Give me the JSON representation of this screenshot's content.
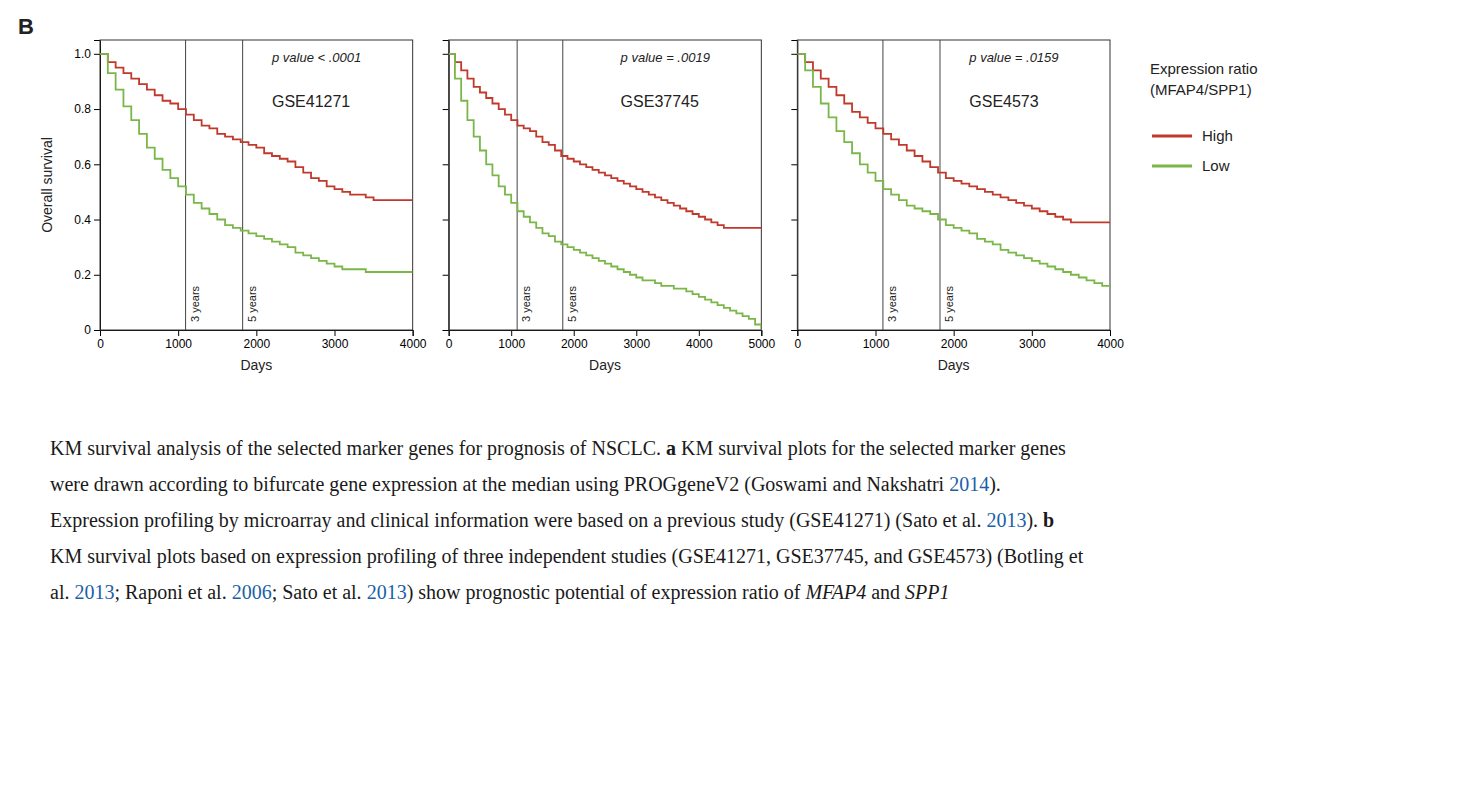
{
  "panel_label": "B",
  "legend": "right",
  "legend_title": "Expression ratio\n(MFAP4/SPP1)",
  "chart_data": [
    {
      "type": "step",
      "title": "GSE41271",
      "annotations": [
        {
          "text": "p value < .0001"
        }
      ],
      "xlabel": "Days",
      "ylabel": "Overall survival",
      "xlim": [
        0,
        4000
      ],
      "xticks": [
        0,
        1000,
        2000,
        3000,
        4000
      ],
      "ylim": [
        0,
        1.05
      ],
      "yticks": [
        0,
        0.2,
        0.4,
        0.6,
        0.8,
        {
          "value": 1.0,
          "label": "1.0"
        }
      ],
      "grid": false,
      "vlines": [
        {
          "value": 1095,
          "label": "3 years"
        },
        {
          "value": 1825,
          "label": "5 years"
        }
      ],
      "x": [
        0,
        100,
        200,
        300,
        400,
        500,
        600,
        700,
        800,
        900,
        1000,
        1100,
        1200,
        1300,
        1400,
        1500,
        1600,
        1700,
        1800,
        1900,
        2000,
        2100,
        2200,
        2300,
        2400,
        2500,
        2600,
        2700,
        2800,
        2900,
        3000,
        3100,
        3200,
        3300,
        3400,
        3500,
        3600,
        3700,
        3800,
        3900,
        4000
      ],
      "series": [
        {
          "name": "High",
          "color": "#c0392b",
          "values": [
            1.0,
            0.97,
            0.95,
            0.93,
            0.91,
            0.89,
            0.87,
            0.85,
            0.83,
            0.82,
            0.8,
            0.78,
            0.76,
            0.74,
            0.73,
            0.71,
            0.7,
            0.69,
            0.68,
            0.67,
            0.66,
            0.64,
            0.63,
            0.62,
            0.61,
            0.59,
            0.57,
            0.55,
            0.54,
            0.52,
            0.51,
            0.5,
            0.49,
            0.49,
            0.48,
            0.47,
            0.47,
            0.47,
            0.47,
            0.47,
            0.47
          ]
        },
        {
          "name": "Low",
          "color": "#7ab648",
          "values": [
            1.0,
            0.93,
            0.87,
            0.81,
            0.76,
            0.71,
            0.66,
            0.62,
            0.58,
            0.55,
            0.52,
            0.49,
            0.46,
            0.44,
            0.42,
            0.4,
            0.38,
            0.37,
            0.36,
            0.35,
            0.34,
            0.33,
            0.32,
            0.31,
            0.3,
            0.28,
            0.27,
            0.26,
            0.25,
            0.24,
            0.23,
            0.22,
            0.22,
            0.22,
            0.21,
            0.21,
            0.21,
            0.21,
            0.21,
            0.21,
            0.21
          ]
        }
      ]
    },
    {
      "type": "step",
      "title": "GSE37745",
      "annotations": [
        {
          "text": "p value = .0019"
        }
      ],
      "xlabel": "Days",
      "xlim": [
        0,
        5000
      ],
      "xticks": [
        0,
        1000,
        2000,
        3000,
        4000,
        5000
      ],
      "ylim": [
        0,
        1.05
      ],
      "yticks": [
        0,
        0.2,
        0.4,
        0.6,
        0.8,
        1.0
      ],
      "tick_labels": "x",
      "grid": false,
      "vlines": [
        {
          "value": 1095,
          "label": "3 years"
        },
        {
          "value": 1825,
          "label": "5 years"
        }
      ],
      "x": [
        0,
        100,
        200,
        300,
        400,
        500,
        600,
        700,
        800,
        900,
        1000,
        1100,
        1200,
        1300,
        1400,
        1500,
        1600,
        1700,
        1800,
        1900,
        2000,
        2100,
        2200,
        2300,
        2400,
        2500,
        2600,
        2700,
        2800,
        2900,
        3000,
        3100,
        3200,
        3300,
        3400,
        3500,
        3600,
        3700,
        3800,
        3900,
        4000,
        4100,
        4200,
        4300,
        4400,
        4500,
        4600,
        4700,
        4800,
        4900,
        5000
      ],
      "series": [
        {
          "name": "High",
          "color": "#c0392b",
          "values": [
            1.0,
            0.97,
            0.94,
            0.91,
            0.88,
            0.86,
            0.84,
            0.82,
            0.8,
            0.78,
            0.76,
            0.74,
            0.73,
            0.72,
            0.7,
            0.68,
            0.67,
            0.65,
            0.63,
            0.62,
            0.61,
            0.6,
            0.59,
            0.58,
            0.57,
            0.56,
            0.55,
            0.54,
            0.53,
            0.52,
            0.51,
            0.5,
            0.49,
            0.48,
            0.47,
            0.46,
            0.45,
            0.44,
            0.43,
            0.42,
            0.41,
            0.4,
            0.39,
            0.38,
            0.37,
            0.37,
            0.37,
            0.37,
            0.37,
            0.37,
            0.37
          ]
        },
        {
          "name": "Low",
          "color": "#7ab648",
          "values": [
            1.0,
            0.91,
            0.83,
            0.76,
            0.7,
            0.65,
            0.6,
            0.56,
            0.52,
            0.49,
            0.46,
            0.43,
            0.41,
            0.39,
            0.37,
            0.35,
            0.34,
            0.32,
            0.31,
            0.3,
            0.29,
            0.28,
            0.27,
            0.26,
            0.25,
            0.24,
            0.23,
            0.22,
            0.21,
            0.2,
            0.19,
            0.18,
            0.18,
            0.17,
            0.16,
            0.16,
            0.15,
            0.15,
            0.14,
            0.13,
            0.12,
            0.11,
            0.1,
            0.09,
            0.08,
            0.07,
            0.06,
            0.05,
            0.04,
            0.02,
            0.0
          ]
        }
      ]
    },
    {
      "type": "step",
      "title": "GSE4573",
      "annotations": [
        {
          "text": "p value = .0159"
        }
      ],
      "xlabel": "Days",
      "xlim": [
        0,
        4000
      ],
      "xticks": [
        0,
        1000,
        2000,
        3000,
        4000
      ],
      "ylim": [
        0,
        1.05
      ],
      "yticks": [
        0,
        0.2,
        0.4,
        0.6,
        0.8,
        1.0
      ],
      "tick_labels": "x",
      "grid": false,
      "vlines": [
        {
          "value": 1095,
          "label": "3 years"
        },
        {
          "value": 1825,
          "label": "5 years"
        }
      ],
      "x": [
        0,
        100,
        200,
        300,
        400,
        500,
        600,
        700,
        800,
        900,
        1000,
        1100,
        1200,
        1300,
        1400,
        1500,
        1600,
        1700,
        1800,
        1900,
        2000,
        2100,
        2200,
        2300,
        2400,
        2500,
        2600,
        2700,
        2800,
        2900,
        3000,
        3100,
        3200,
        3300,
        3400,
        3500,
        3600,
        3700,
        3800,
        3900,
        4000
      ],
      "series": [
        {
          "name": "High",
          "color": "#c0392b",
          "values": [
            1.0,
            0.97,
            0.94,
            0.91,
            0.88,
            0.85,
            0.82,
            0.79,
            0.77,
            0.75,
            0.73,
            0.71,
            0.69,
            0.67,
            0.65,
            0.63,
            0.61,
            0.59,
            0.57,
            0.55,
            0.54,
            0.53,
            0.52,
            0.51,
            0.5,
            0.49,
            0.48,
            0.47,
            0.46,
            0.45,
            0.44,
            0.43,
            0.42,
            0.41,
            0.4,
            0.39,
            0.39,
            0.39,
            0.39,
            0.39,
            0.39
          ]
        },
        {
          "name": "Low",
          "color": "#7ab648",
          "values": [
            1.0,
            0.94,
            0.88,
            0.82,
            0.77,
            0.72,
            0.68,
            0.64,
            0.6,
            0.57,
            0.54,
            0.51,
            0.49,
            0.47,
            0.45,
            0.44,
            0.43,
            0.42,
            0.4,
            0.38,
            0.37,
            0.36,
            0.35,
            0.33,
            0.32,
            0.31,
            0.29,
            0.28,
            0.27,
            0.26,
            0.25,
            0.24,
            0.23,
            0.22,
            0.21,
            0.2,
            0.19,
            0.18,
            0.17,
            0.16,
            0.15
          ]
        }
      ]
    }
  ],
  "caption": [
    {
      "text": "KM survival analysis of the selected marker genes for prognosis of NSCLC. ",
      "bold": false,
      "italic": false,
      "color": "#1a1a1a"
    },
    {
      "text": "a",
      "bold": true,
      "italic": false,
      "color": "#1a1a1a"
    },
    {
      "text": " KM survival plots for the selected marker genes were drawn according to bifurcate gene expression at the median using PROGgeneV2 (Goswami and Nakshatri ",
      "bold": false,
      "italic": false,
      "color": "#1a1a1a"
    },
    {
      "text": "2014",
      "bold": false,
      "italic": false,
      "color": "#1a5fa8"
    },
    {
      "text": "). Expression profiling by microarray and clinical information were based on a previous study (GSE41271) (Sato et al. ",
      "bold": false,
      "italic": false,
      "color": "#1a1a1a"
    },
    {
      "text": "2013",
      "bold": false,
      "italic": false,
      "color": "#1a5fa8"
    },
    {
      "text": "). ",
      "bold": false,
      "italic": false,
      "color": "#1a1a1a"
    },
    {
      "text": "b",
      "bold": true,
      "italic": false,
      "color": "#1a1a1a"
    },
    {
      "text": " KM survival plots based on expression profiling of three independent studies (GSE41271, GSE37745, and GSE4573) (Botling et al. ",
      "bold": false,
      "italic": false,
      "color": "#1a1a1a"
    },
    {
      "text": "2013",
      "bold": false,
      "italic": false,
      "color": "#1a5fa8"
    },
    {
      "text": "; Raponi et al. ",
      "bold": false,
      "italic": false,
      "color": "#1a1a1a"
    },
    {
      "text": "2006",
      "bold": false,
      "italic": false,
      "color": "#1a5fa8"
    },
    {
      "text": "; Sato et al. ",
      "bold": false,
      "italic": false,
      "color": "#1a1a1a"
    },
    {
      "text": "2013",
      "bold": false,
      "italic": false,
      "color": "#1a5fa8"
    },
    {
      "text": ") show prognostic potential of expression ratio of ",
      "bold": false,
      "italic": false,
      "color": "#1a1a1a"
    },
    {
      "text": "MFAP4",
      "bold": false,
      "italic": true,
      "color": "#1a1a1a"
    },
    {
      "text": " and ",
      "bold": false,
      "italic": false,
      "color": "#1a1a1a"
    },
    {
      "text": "SPP1",
      "bold": false,
      "italic": true,
      "color": "#1a1a1a"
    }
  ]
}
